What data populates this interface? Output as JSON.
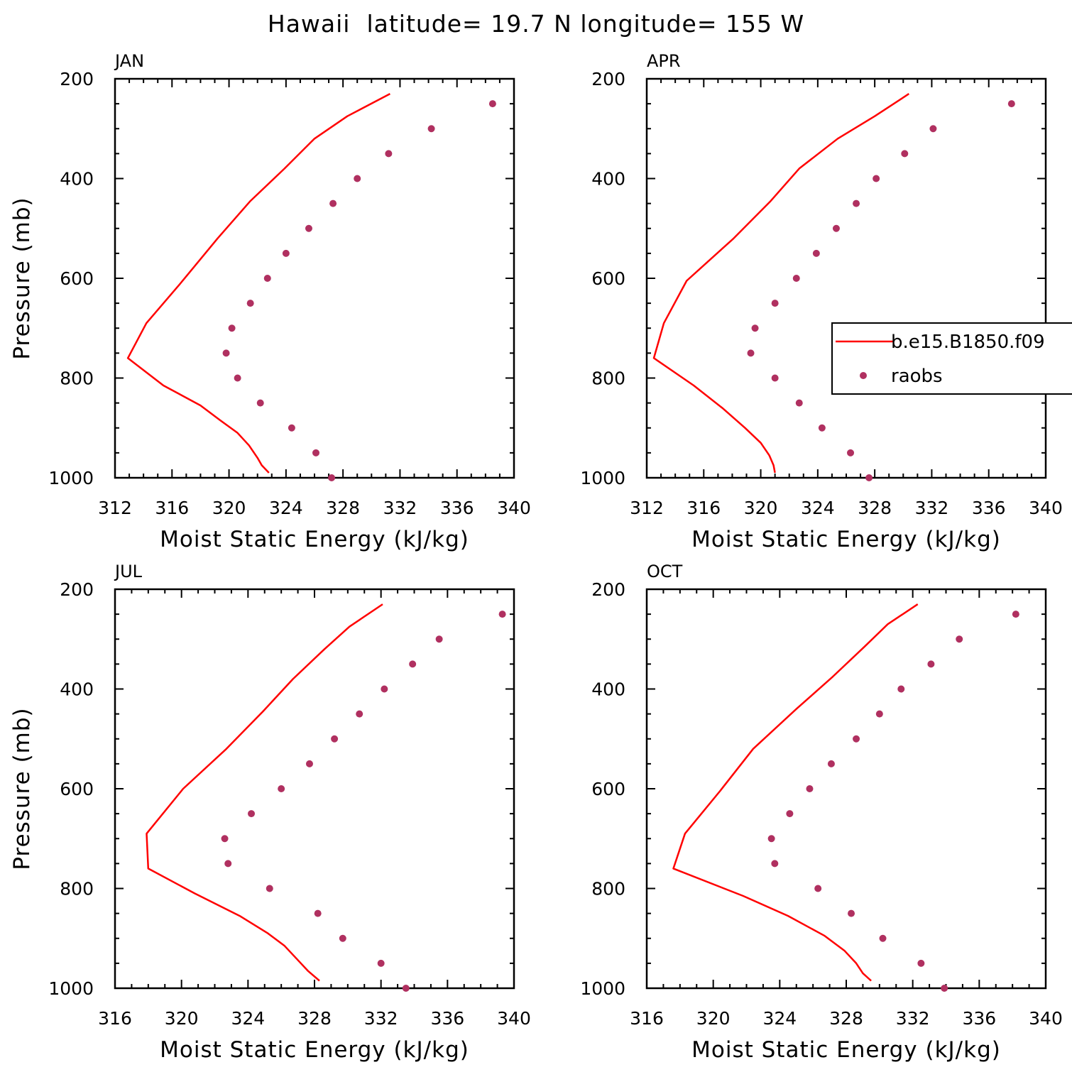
{
  "title": "Hawaii  latitude= 19.7 N longitude= 155 W",
  "colors": {
    "model": "#ff0000",
    "obs": "#b03060",
    "axis": "#000000"
  },
  "legend": {
    "model_label": "b.e15.B1850.f09",
    "obs_label": "raobs"
  },
  "chart_data": [
    {
      "type": "line",
      "title": "JAN",
      "xlabel": "Moist Static Energy (kJ/kg)",
      "ylabel": "Pressure (mb)",
      "xlim": [
        312,
        340
      ],
      "ylim": [
        200,
        1000
      ],
      "xticks": [
        312,
        316,
        320,
        324,
        328,
        332,
        336,
        340
      ],
      "yticks": [
        200,
        400,
        600,
        800,
        1000
      ],
      "series": [
        {
          "name": "b.e15.B1850.f09",
          "kind": "line",
          "x": [
            331.3,
            328.3,
            326.0,
            323.9,
            321.5,
            319.2,
            316.6,
            314.2,
            312.9,
            315.4,
            318.0,
            319.4,
            320.6,
            321.4,
            322.0,
            322.3,
            322.8
          ],
          "y": [
            230,
            275,
            320,
            380,
            445,
            520,
            610,
            690,
            760,
            815,
            855,
            885,
            910,
            935,
            960,
            975,
            990
          ]
        },
        {
          "name": "raobs",
          "kind": "scatter",
          "x": [
            338.5,
            334.2,
            331.2,
            329.0,
            327.3,
            325.6,
            324.0,
            322.7,
            321.5,
            320.2,
            319.8,
            320.6,
            322.2,
            324.4,
            326.1,
            327.2
          ],
          "y": [
            250,
            300,
            350,
            400,
            450,
            500,
            550,
            600,
            650,
            700,
            750,
            800,
            850,
            900,
            950,
            1000
          ]
        }
      ]
    },
    {
      "type": "line",
      "title": "APR",
      "xlabel": "Moist Static Energy (kJ/kg)",
      "ylabel": "",
      "xlim": [
        312,
        340
      ],
      "ylim": [
        200,
        1000
      ],
      "xticks": [
        312,
        316,
        320,
        324,
        328,
        332,
        336,
        340
      ],
      "yticks": [
        200,
        400,
        600,
        800,
        1000
      ],
      "series": [
        {
          "name": "b.e15.B1850.f09",
          "kind": "line",
          "x": [
            330.4,
            328.0,
            325.4,
            322.7,
            320.7,
            318.1,
            314.8,
            313.2,
            312.5,
            315.3,
            317.3,
            318.9,
            320.0,
            320.6,
            320.9,
            321.0
          ],
          "y": [
            230,
            275,
            320,
            380,
            445,
            520,
            605,
            690,
            760,
            815,
            860,
            900,
            930,
            955,
            975,
            990
          ]
        },
        {
          "name": "raobs",
          "kind": "scatter",
          "x": [
            337.6,
            332.1,
            330.1,
            328.1,
            326.7,
            325.3,
            323.9,
            322.5,
            321.0,
            319.6,
            319.3,
            321.0,
            322.7,
            324.3,
            326.3,
            327.6
          ],
          "y": [
            250,
            300,
            350,
            400,
            450,
            500,
            550,
            600,
            650,
            700,
            750,
            800,
            850,
            900,
            950,
            1000
          ]
        }
      ]
    },
    {
      "type": "line",
      "title": "JUL",
      "xlabel": "Moist Static Energy (kJ/kg)",
      "ylabel": "Pressure (mb)",
      "xlim": [
        316,
        340
      ],
      "ylim": [
        200,
        1000
      ],
      "xticks": [
        316,
        320,
        324,
        328,
        332,
        336,
        340
      ],
      "yticks": [
        200,
        400,
        600,
        800,
        1000
      ],
      "series": [
        {
          "name": "b.e15.B1850.f09",
          "kind": "line",
          "x": [
            332.1,
            330.1,
            328.6,
            326.7,
            324.9,
            322.7,
            320.1,
            317.9,
            318.0,
            320.8,
            323.5,
            325.2,
            326.2,
            326.9,
            327.6,
            328.3
          ],
          "y": [
            230,
            275,
            320,
            380,
            445,
            520,
            600,
            690,
            760,
            810,
            855,
            890,
            915,
            940,
            965,
            985
          ]
        },
        {
          "name": "raobs",
          "kind": "scatter",
          "x": [
            339.3,
            335.5,
            333.9,
            332.2,
            330.7,
            329.2,
            327.7,
            326.0,
            324.2,
            322.6,
            322.8,
            325.3,
            328.2,
            329.7,
            332.0,
            333.5
          ],
          "y": [
            250,
            300,
            350,
            400,
            450,
            500,
            550,
            600,
            650,
            700,
            750,
            800,
            850,
            900,
            950,
            1000
          ]
        }
      ]
    },
    {
      "type": "line",
      "title": "OCT",
      "xlabel": "Moist Static Energy (kJ/kg)",
      "ylabel": "",
      "xlim": [
        316,
        340
      ],
      "ylim": [
        200,
        1000
      ],
      "xticks": [
        316,
        320,
        324,
        328,
        332,
        336,
        340
      ],
      "yticks": [
        200,
        400,
        600,
        800,
        1000
      ],
      "series": [
        {
          "name": "b.e15.B1850.f09",
          "kind": "line",
          "x": [
            332.3,
            330.5,
            329.1,
            327.2,
            325.0,
            322.4,
            320.4,
            318.3,
            317.6,
            321.8,
            324.5,
            326.7,
            327.9,
            328.6,
            329.0,
            329.5
          ],
          "y": [
            230,
            270,
            315,
            375,
            440,
            520,
            605,
            690,
            760,
            815,
            855,
            895,
            925,
            950,
            970,
            985
          ]
        },
        {
          "name": "raobs",
          "kind": "scatter",
          "x": [
            338.2,
            334.8,
            333.1,
            331.3,
            330.0,
            328.6,
            327.1,
            325.8,
            324.6,
            323.5,
            323.7,
            326.3,
            328.3,
            330.2,
            332.5,
            333.9
          ],
          "y": [
            250,
            300,
            350,
            400,
            450,
            500,
            550,
            600,
            650,
            700,
            750,
            800,
            850,
            900,
            950,
            1000
          ]
        }
      ]
    }
  ]
}
